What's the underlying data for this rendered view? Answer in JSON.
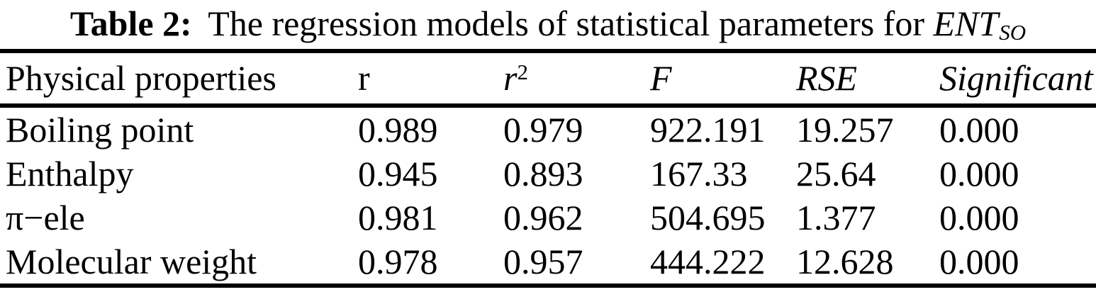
{
  "title": {
    "label": "Table 2:",
    "text": "The regression models of statistical parameters for",
    "variable": "ENT",
    "variable_sub": "SO"
  },
  "table": {
    "header": {
      "property": "Physical properties",
      "r": "r",
      "r2_base": "r",
      "r2_sup": "2",
      "f": "F",
      "rse": "RSE",
      "significant": "Significant"
    },
    "rows": [
      {
        "property": "Boiling point",
        "r": "0.989",
        "r2": "0.979",
        "f": "922.191",
        "rse": "19.257",
        "significant": "0.000"
      },
      {
        "property": "Enthalpy",
        "r": "0.945",
        "r2": "0.893",
        "f": "167.33",
        "rse": "25.64",
        "significant": "0.000"
      },
      {
        "property": "π−ele",
        "r": "0.981",
        "r2": "0.962",
        "f": "504.695",
        "rse": "1.377",
        "significant": "0.000"
      },
      {
        "property": "Molecular weight",
        "r": "0.978",
        "r2": "0.957",
        "f": "444.222",
        "rse": "12.628",
        "significant": "0.000"
      }
    ]
  }
}
